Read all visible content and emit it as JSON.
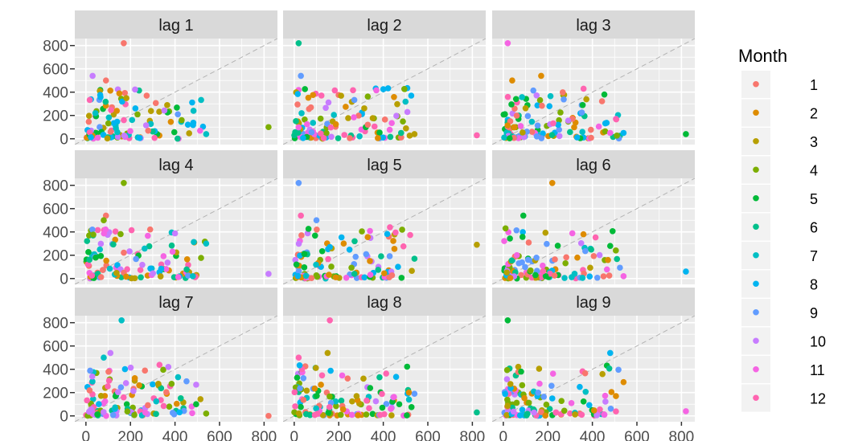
{
  "chart_data": {
    "type": "scatter",
    "facet_label_prefix": "lag",
    "panels": [
      "lag 1",
      "lag 2",
      "lag 3",
      "lag 4",
      "lag 5",
      "lag 6",
      "lag 7",
      "lag 8",
      "lag 9"
    ],
    "x_ticks": [
      0,
      200,
      400,
      600,
      800
    ],
    "y_ticks": [
      0,
      200,
      400,
      600,
      800
    ],
    "xlim": [
      -50,
      860
    ],
    "ylim": [
      -50,
      860
    ],
    "diagonal_reference_line": true,
    "grid": true,
    "legend": {
      "title": "Month",
      "position": "right",
      "entries": [
        "1",
        "2",
        "3",
        "4",
        "5",
        "6",
        "7",
        "8",
        "9",
        "10",
        "11",
        "12"
      ],
      "colors": [
        "#F8766D",
        "#DE8C00",
        "#B79F00",
        "#7CAE00",
        "#00BA38",
        "#00C08B",
        "#00BFC4",
        "#00B4F0",
        "#619CFF",
        "#C77CFF",
        "#F564E3",
        "#FF64B0"
      ]
    },
    "series_note": "each panel plots value(t) on y against value(t-lag) on x, coloured by month",
    "highlight_points": [
      {
        "panel": 1,
        "points": [
          [
            170,
            820
          ],
          [
            820,
            100
          ],
          [
            540,
            40
          ],
          [
            30,
            540
          ],
          [
            90,
            500
          ],
          [
            430,
            160
          ]
        ]
      },
      {
        "panel": 2,
        "points": [
          [
            20,
            820
          ],
          [
            30,
            540
          ],
          [
            820,
            30
          ],
          [
            540,
            40
          ],
          [
            480,
            50
          ]
        ]
      },
      {
        "panel": 3,
        "points": [
          [
            20,
            820
          ],
          [
            170,
            540
          ],
          [
            820,
            40
          ],
          [
            540,
            50
          ],
          [
            480,
            50
          ],
          [
            40,
            500
          ]
        ]
      },
      {
        "panel": 4,
        "points": [
          [
            170,
            820
          ],
          [
            540,
            300
          ],
          [
            820,
            40
          ],
          [
            90,
            540
          ],
          [
            80,
            500
          ],
          [
            480,
            20
          ]
        ]
      },
      {
        "panel": 5,
        "points": [
          [
            20,
            820
          ],
          [
            30,
            540
          ],
          [
            820,
            290
          ],
          [
            540,
            170
          ],
          [
            100,
            500
          ],
          [
            430,
            440
          ]
        ]
      },
      {
        "panel": 6,
        "points": [
          [
            220,
            820
          ],
          [
            90,
            540
          ],
          [
            820,
            60
          ],
          [
            540,
            20
          ],
          [
            360,
            380
          ],
          [
            480,
            280
          ]
        ]
      },
      {
        "panel": 7,
        "points": [
          [
            160,
            820
          ],
          [
            110,
            540
          ],
          [
            820,
            0
          ],
          [
            540,
            20
          ],
          [
            80,
            500
          ],
          [
            370,
            420
          ]
        ]
      },
      {
        "panel": 8,
        "points": [
          [
            160,
            820
          ],
          [
            150,
            540
          ],
          [
            820,
            30
          ],
          [
            540,
            190
          ],
          [
            20,
            500
          ],
          [
            280,
            170
          ]
        ]
      },
      {
        "panel": 9,
        "points": [
          [
            20,
            820
          ],
          [
            480,
            540
          ],
          [
            820,
            40
          ],
          [
            540,
            290
          ],
          [
            80,
            380
          ],
          [
            220,
            150
          ]
        ]
      }
    ]
  }
}
